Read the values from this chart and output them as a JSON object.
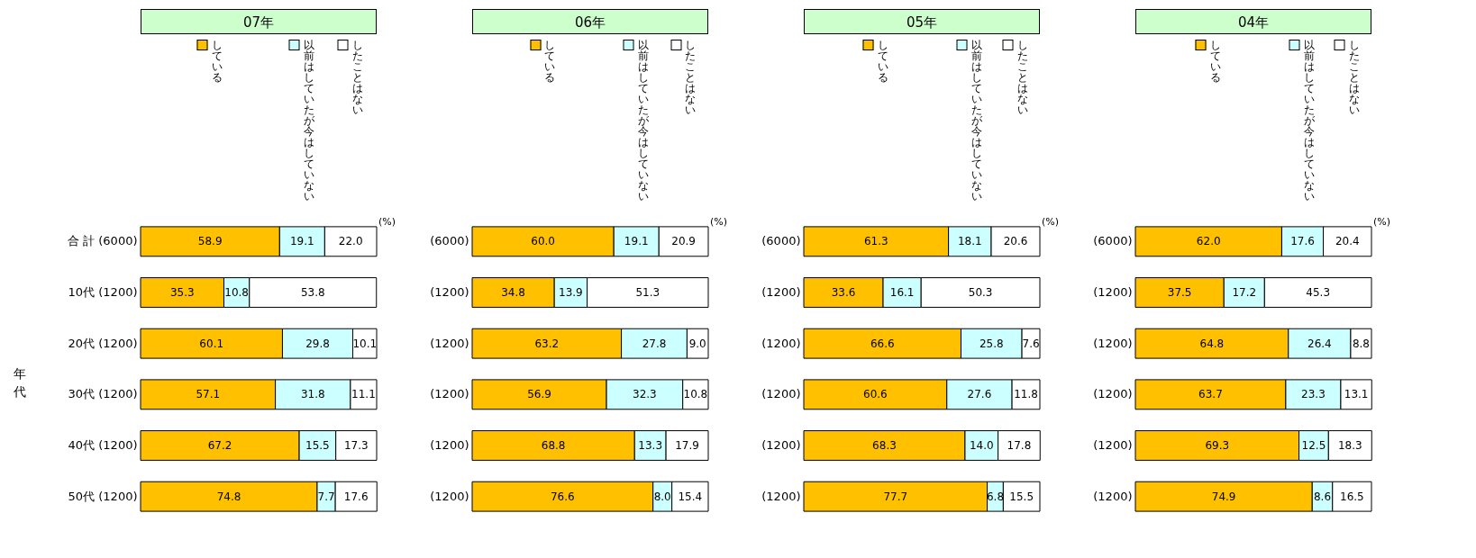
{
  "chart_data": [
    {
      "type": "bar",
      "orientation": "horizontal",
      "stacked": true,
      "title": "07年",
      "ylabel": "年代",
      "categories": [
        "合 計 (6000)",
        "10代 (1200)",
        "20代 (1200)",
        "30代 (1200)",
        "40代 (1200)",
        "50代 (1200)"
      ],
      "xlim": [
        0,
        100
      ],
      "tick_labels": "y",
      "legend": "top",
      "annotations": [
        "(%)"
      ],
      "series": [
        {
          "name": "している",
          "color": "#ffc000",
          "values": [
            58.9,
            35.3,
            60.1,
            57.1,
            67.2,
            74.8
          ],
          "value_labels": [
            "58.9",
            "35.3",
            "60.1",
            "57.1",
            "67.2",
            "74.8"
          ]
        },
        {
          "name": "以前はしていたが今はしていない",
          "color": "#ccffff",
          "values": [
            19.1,
            10.8,
            29.8,
            31.8,
            15.5,
            7.7
          ],
          "value_labels": [
            "19.1",
            "10.8",
            "29.8",
            "31.8",
            "15.5",
            "7.7"
          ]
        },
        {
          "name": "したことはない",
          "color": "#ffffff",
          "values": [
            22.0,
            53.8,
            10.1,
            11.1,
            17.3,
            17.6
          ],
          "value_labels": [
            "22.0",
            "53.8",
            "10.1",
            "11.1",
            "17.3",
            "17.6"
          ]
        }
      ]
    },
    {
      "type": "bar",
      "orientation": "horizontal",
      "stacked": true,
      "title": "06年",
      "categories": [
        "(6000)",
        "(1200)",
        "(1200)",
        "(1200)",
        "(1200)",
        "(1200)"
      ],
      "xlim": [
        0,
        100
      ],
      "tick_labels": "y",
      "legend": "top",
      "annotations": [
        "(%)"
      ],
      "series": [
        {
          "name": "している",
          "color": "#ffc000",
          "values": [
            60.0,
            34.8,
            63.2,
            56.9,
            68.8,
            76.6
          ],
          "value_labels": [
            "60.0",
            "34.8",
            "63.2",
            "56.9",
            "68.8",
            "76.6"
          ]
        },
        {
          "name": "以前はしていたが今はしていない",
          "color": "#ccffff",
          "values": [
            19.1,
            13.9,
            27.8,
            32.3,
            13.3,
            8.0
          ],
          "value_labels": [
            "19.1",
            "13.9",
            "27.8",
            "32.3",
            "13.3",
            "8.0"
          ]
        },
        {
          "name": "したことはない",
          "color": "#ffffff",
          "values": [
            20.9,
            51.3,
            9.0,
            10.8,
            17.9,
            15.4
          ],
          "value_labels": [
            "20.9",
            "51.3",
            "9.0",
            "10.8",
            "17.9",
            "15.4"
          ]
        }
      ]
    },
    {
      "type": "bar",
      "orientation": "horizontal",
      "stacked": true,
      "title": "05年",
      "categories": [
        "(6000)",
        "(1200)",
        "(1200)",
        "(1200)",
        "(1200)",
        "(1200)"
      ],
      "xlim": [
        0,
        100
      ],
      "tick_labels": "y",
      "legend": "top",
      "annotations": [
        "(%)"
      ],
      "series": [
        {
          "name": "している",
          "color": "#ffc000",
          "values": [
            61.3,
            33.6,
            66.6,
            60.6,
            68.3,
            77.7
          ],
          "value_labels": [
            "61.3",
            "33.6",
            "66.6",
            "60.6",
            "68.3",
            "77.7"
          ]
        },
        {
          "name": "以前はしていたが今はしていない",
          "color": "#ccffff",
          "values": [
            18.1,
            16.1,
            25.8,
            27.6,
            14.0,
            6.8
          ],
          "value_labels": [
            "18.1",
            "16.1",
            "25.8",
            "27.6",
            "14.0",
            "6.8"
          ]
        },
        {
          "name": "したことはない",
          "color": "#ffffff",
          "values": [
            20.6,
            50.3,
            7.6,
            11.8,
            17.8,
            15.5
          ],
          "value_labels": [
            "20.6",
            "50.3",
            "7.6",
            "11.8",
            "17.8",
            "15.5"
          ]
        }
      ]
    },
    {
      "type": "bar",
      "orientation": "horizontal",
      "stacked": true,
      "title": "04年",
      "categories": [
        "(6000)",
        "(1200)",
        "(1200)",
        "(1200)",
        "(1200)",
        "(1200)"
      ],
      "xlim": [
        0,
        100
      ],
      "tick_labels": "y",
      "legend": "top",
      "annotations": [
        "(%)"
      ],
      "series": [
        {
          "name": "している",
          "color": "#ffc000",
          "values": [
            62.0,
            37.5,
            64.8,
            63.7,
            69.3,
            74.9
          ],
          "value_labels": [
            "62.0",
            "37.5",
            "64.8",
            "63.7",
            "69.3",
            "74.9"
          ]
        },
        {
          "name": "以前はしていたが今はしていない",
          "color": "#ccffff",
          "values": [
            17.6,
            17.2,
            26.4,
            23.3,
            12.5,
            8.6
          ],
          "value_labels": [
            "17.6",
            "17.2",
            "26.4",
            "23.3",
            "12.5",
            "8.6"
          ]
        },
        {
          "name": "したことはない",
          "color": "#ffffff",
          "values": [
            20.4,
            45.3,
            8.8,
            13.1,
            18.3,
            16.5
          ],
          "value_labels": [
            "20.4",
            "45.3",
            "8.8",
            "13.1",
            "18.3",
            "16.5"
          ]
        }
      ]
    }
  ]
}
